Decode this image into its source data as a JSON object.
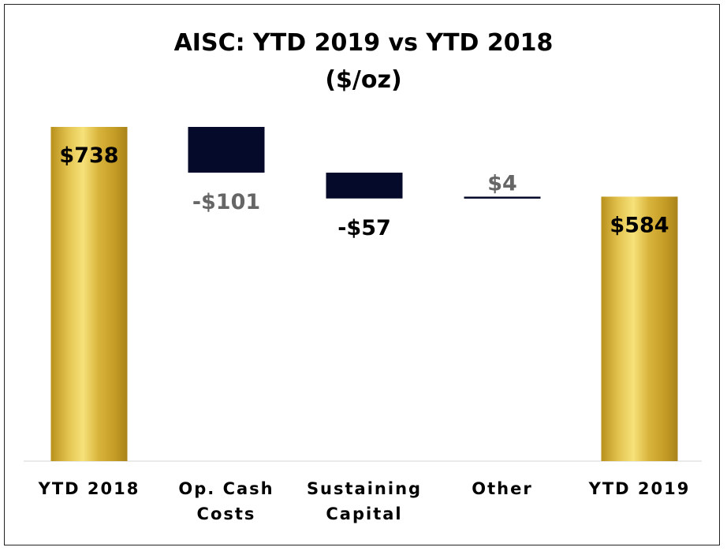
{
  "chart_data": {
    "type": "bar",
    "subtype": "waterfall",
    "title": "AISC: YTD 2019 vs YTD 2018",
    "subtitle": "($/oz)",
    "categories": [
      [
        "YTD 2018"
      ],
      [
        "Op. Cash",
        "Costs"
      ],
      [
        "Sustaining",
        "Capital"
      ],
      [
        "Other"
      ],
      [
        "YTD 2019"
      ]
    ],
    "values": [
      738,
      -101,
      -57,
      4,
      584
    ],
    "kinds": [
      "total",
      "delta",
      "delta",
      "delta",
      "total"
    ],
    "data_labels": [
      "$738",
      "-$101",
      "-$57",
      "$4",
      "$584"
    ],
    "ylim": [
      0,
      738
    ],
    "grid": false,
    "colors": {
      "gold_dark": "#b8901c",
      "gold_light": "#f6e27a",
      "delta_fill": "#050a2a",
      "label_dark": "#000000",
      "label_grey": "#666666"
    }
  }
}
